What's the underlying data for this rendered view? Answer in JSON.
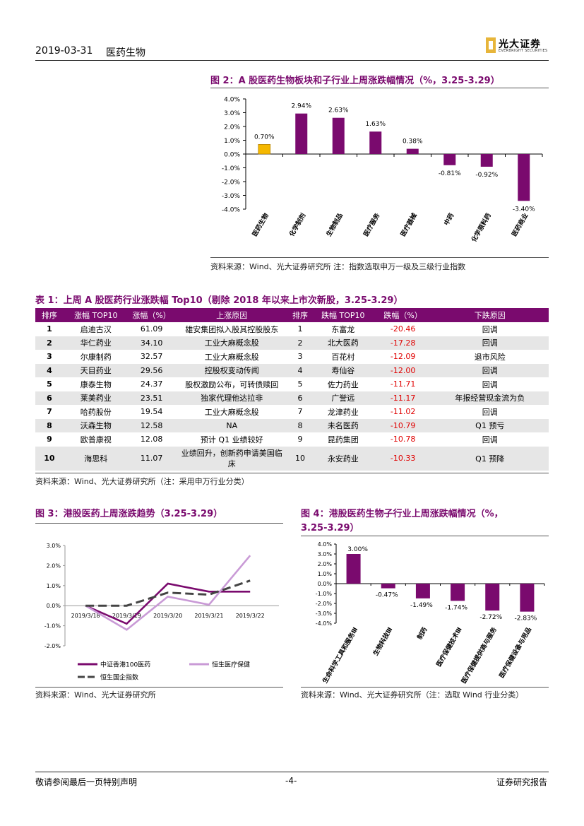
{
  "header": {
    "date": "2019-03-31",
    "section": "医药生物",
    "logo_cn": "光大证券",
    "logo_en": "EVERBRIGHT SECURITIES"
  },
  "fig2": {
    "title": "图 2：A 股医药生物板块和子行业上周涨跌幅情况（%，3.25-3.29）",
    "source": "资料来源：Wind、光大证券研究所   注：指数选取申万一级及三级行业指数",
    "chart_data": {
      "type": "bar",
      "categories": [
        "医药生物",
        "化学制剂",
        "生物制品",
        "医疗服务",
        "医疗器械",
        "中药",
        "化学原料药",
        "医药商业"
      ],
      "values": [
        0.7,
        2.94,
        2.63,
        1.63,
        0.38,
        -0.81,
        -0.92,
        -3.4
      ],
      "data_labels": [
        "0.70%",
        "2.94%",
        "2.63%",
        "1.63%",
        "0.38%",
        "-0.81%",
        "-0.92%",
        "-3.40%"
      ],
      "ylim": [
        -4,
        4
      ],
      "yticks": [
        "4.0%",
        "3.0%",
        "2.0%",
        "1.0%",
        "0.0%",
        "-1.0%",
        "-2.0%",
        "-3.0%",
        "-4.0%"
      ],
      "colors": {
        "highlight": "#f5b800",
        "bar": "#7a0a6e"
      }
    }
  },
  "table1": {
    "title": "表 1：上周 A 股医药行业涨跌幅 Top10（剔除 2018 年以来上市次新股，3.25-3.29）",
    "headers": [
      "排序",
      "涨幅 TOP10",
      "涨幅（%）",
      "上涨原因",
      "排序",
      "跌幅 TOP10",
      "跌幅（%）",
      "下跌原因"
    ],
    "rows": [
      [
        "1",
        "启迪古汉",
        "61.09",
        "雄安集团拟入股其控股股东",
        "1",
        "东富龙",
        "-20.46",
        "回调"
      ],
      [
        "2",
        "华仁药业",
        "34.10",
        "工业大麻概念股",
        "2",
        "北大医药",
        "-17.28",
        "回调"
      ],
      [
        "3",
        "尔康制药",
        "32.57",
        "工业大麻概念股",
        "3",
        "百花村",
        "-12.09",
        "退市风险"
      ],
      [
        "4",
        "天目药业",
        "29.56",
        "控股权变动传闻",
        "4",
        "寿仙谷",
        "-12.00",
        "回调"
      ],
      [
        "5",
        "康泰生物",
        "24.37",
        "股权激励公布，可转债赎回",
        "5",
        "佐力药业",
        "-11.71",
        "回调"
      ],
      [
        "6",
        "莱美药业",
        "23.51",
        "独家代理他达拉非",
        "6",
        "广誉远",
        "-11.17",
        "年报经营现金流为负"
      ],
      [
        "7",
        "哈药股份",
        "19.54",
        "工业大麻概念股",
        "7",
        "龙津药业",
        "-11.02",
        "回调"
      ],
      [
        "8",
        "沃森生物",
        "12.58",
        "NA",
        "8",
        "未名医药",
        "-10.79",
        "Q1 预亏"
      ],
      [
        "9",
        "欧普康视",
        "12.08",
        "预计 Q1 业绩较好",
        "9",
        "昆药集团",
        "-10.78",
        "回调"
      ],
      [
        "10",
        "海思科",
        "11.07",
        "业绩回升，创新药申请美国临床",
        "10",
        "永安药业",
        "-10.33",
        "Q1 预降"
      ]
    ],
    "source": "资料来源：Wind、光大证券研究所（注：采用申万行业分类）"
  },
  "fig3": {
    "title": "图 3：港股医药上周涨跌趋势（3.25-3.29）",
    "source": "资料来源：Wind、光大证券研究所",
    "chart_data": {
      "type": "line",
      "x": [
        "2019/3/18",
        "2019/3/19",
        "2019/3/20",
        "2019/3/21",
        "2019/3/22"
      ],
      "yticks": [
        "3.0%",
        "2.0%",
        "1.0%",
        "0.0%",
        "-1.0%",
        "-2.0%"
      ],
      "ylim": [
        -2,
        3
      ],
      "series": [
        {
          "name": "中证香港100医药",
          "values": [
            0.0,
            -0.9,
            1.1,
            0.7,
            0.7
          ],
          "color": "#7a0a6e",
          "dash": false
        },
        {
          "name": "恒生医疗保健",
          "values": [
            0.0,
            -1.2,
            0.45,
            0.05,
            2.5
          ],
          "color": "#c99ad6",
          "dash": false
        },
        {
          "name": "恒生国企指数",
          "values": [
            0.0,
            0.0,
            0.65,
            0.55,
            1.25
          ],
          "color": "#444444",
          "dash": true
        }
      ]
    }
  },
  "fig4": {
    "title_line1": "图 4：港股医药生物子行业上周涨跌幅情况（%，",
    "title_line2": "3.25-3.29）",
    "source": "资料来源：Wind、光大证券研究所（注：选取 Wind 行业分类）",
    "chart_data": {
      "type": "bar",
      "categories": [
        "生命科学工具和服务Ⅲ",
        "生物科技Ⅲ",
        "制药",
        "医疗保健技术Ⅲ",
        "医疗保健提供商与服务",
        "医疗保健设备与用品"
      ],
      "values": [
        3.0,
        -0.47,
        -1.49,
        -1.74,
        -2.72,
        -2.83
      ],
      "data_labels": [
        "3.00%",
        "-0.47%",
        "-1.49%",
        "-1.74%",
        "-2.72%",
        "-2.83%"
      ],
      "ylim": [
        -4,
        4
      ],
      "yticks": [
        "4.0%",
        "3.0%",
        "2.0%",
        "1.0%",
        "0.0%",
        "-1.0%",
        "-2.0%",
        "-3.0%",
        "-4.0%"
      ],
      "colors": {
        "bar": "#7a0a6e"
      }
    }
  },
  "footer": {
    "left": "敬请参阅最后一页特别声明",
    "center": "-4-",
    "right": "证券研究报告"
  }
}
